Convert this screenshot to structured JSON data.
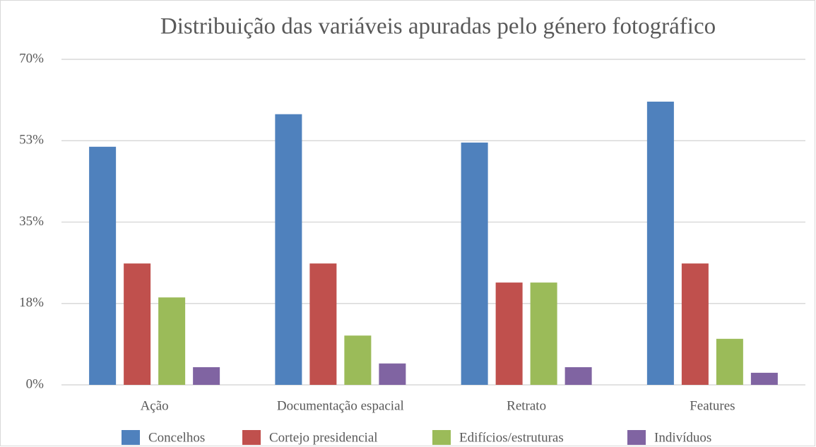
{
  "chart_data": {
    "type": "bar",
    "title": "Distribuição das variáveis apuradas pelo género fotográfico",
    "categories": [
      "Ação",
      "Documentação espacial",
      "Retrato",
      "Features"
    ],
    "series": [
      {
        "name": "Concelhos",
        "color": "#4f81bd",
        "values": [
          51.2,
          58.2,
          52.1,
          60.9
        ]
      },
      {
        "name": "Cortejo presidencial",
        "color": "#c0504d",
        "values": [
          26.1,
          26.1,
          22.0,
          26.1
        ]
      },
      {
        "name": "Edifícios/estruturas",
        "color": "#9bbb59",
        "values": [
          18.8,
          10.6,
          22.0,
          9.9
        ]
      },
      {
        "name": "Indivíduos",
        "color": "#8064a2",
        "values": [
          3.8,
          4.6,
          3.8,
          2.6
        ]
      }
    ],
    "ylim": [
      0,
      70
    ],
    "yticks": [
      0,
      {
        "value": 17.5,
        "label": "18%"
      },
      {
        "value": 35,
        "label": "35%"
      },
      {
        "value": 52.5,
        "label": "53%"
      },
      {
        "value": 70,
        "label": "70%"
      }
    ],
    "ytick_labels_first": "0%",
    "grid": true,
    "legend": "bottom"
  }
}
